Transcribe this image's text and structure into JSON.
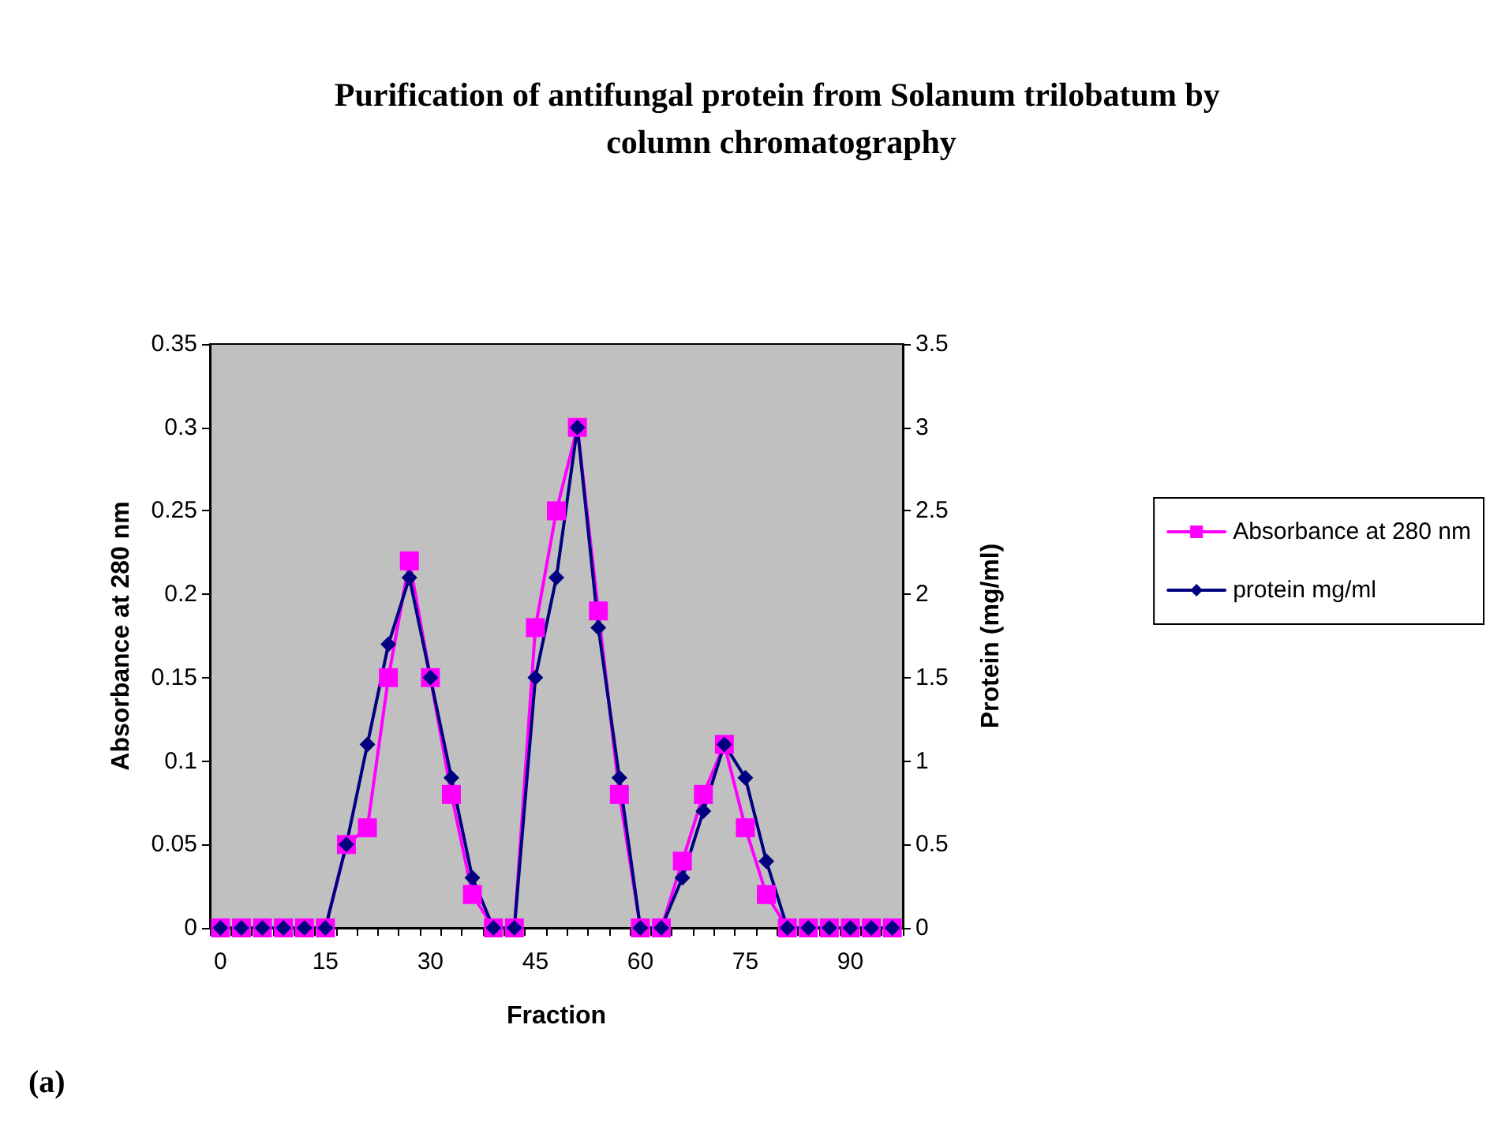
{
  "chart_data": {
    "type": "line",
    "title": "Purification of antifungal protein from Solanum trilobatum by column chromatography",
    "xlabel": "Fraction",
    "ylabel": "Absorbance at 280 nm",
    "y2label": "Protein (mg/ml)",
    "categories": [
      "0",
      null,
      null,
      null,
      null,
      "15",
      null,
      null,
      null,
      null,
      "30",
      null,
      null,
      null,
      null,
      "45",
      null,
      null,
      null,
      null,
      "60",
      null,
      null,
      null,
      null,
      "75",
      null,
      null,
      null,
      null,
      "90",
      null,
      null
    ],
    "series": [
      {
        "name": "Absorbance at 280 nm",
        "color": "#ff00ff",
        "marker": "square",
        "values": [
          0,
          0,
          0,
          0,
          0,
          0,
          0.05,
          0.06,
          0.15,
          0.22,
          0.15,
          0.08,
          0.02,
          0,
          0,
          0.18,
          0.25,
          0.3,
          0.19,
          0.08,
          0,
          0,
          0.04,
          0.08,
          0.11,
          0.06,
          0.02,
          0,
          0,
          0,
          0,
          0,
          0
        ]
      },
      {
        "name": "protein mg/ml",
        "color": "#000080",
        "marker": "diamond",
        "axis": "y2",
        "values": [
          0,
          0,
          0,
          0,
          0,
          0,
          0.5,
          1.1,
          1.7,
          2.1,
          1.5,
          0.9,
          0.3,
          0,
          0,
          1.5,
          2.1,
          3.0,
          1.8,
          0.9,
          0,
          0,
          0.3,
          0.7,
          1.1,
          0.9,
          0.4,
          0,
          0,
          0,
          0,
          0,
          0
        ]
      }
    ],
    "ylim": [
      0,
      0.35
    ],
    "yticks": [
      0,
      0.05,
      0.1,
      0.15,
      0.2,
      0.25,
      0.3,
      0.35
    ],
    "y2lim": [
      0,
      3.5
    ],
    "y2ticks": [
      0,
      0.5,
      1,
      1.5,
      2,
      2.5,
      3,
      3.5
    ],
    "grid": false,
    "legend": "right",
    "line_style": "solid",
    "annotations": [
      "(a)"
    ]
  }
}
